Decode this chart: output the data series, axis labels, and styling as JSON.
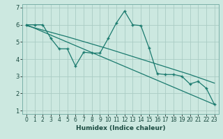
{
  "title": "",
  "xlabel": "Humidex (Indice chaleur)",
  "ylabel": "",
  "bg_color": "#cce8e0",
  "grid_color": "#aaccc4",
  "line_color": "#1a7a6e",
  "xlim": [
    -0.5,
    23.5
  ],
  "ylim": [
    0.8,
    7.2
  ],
  "yticks": [
    1,
    2,
    3,
    4,
    5,
    6,
    7
  ],
  "xticks": [
    0,
    1,
    2,
    3,
    4,
    5,
    6,
    7,
    8,
    9,
    10,
    11,
    12,
    13,
    14,
    15,
    16,
    17,
    18,
    19,
    20,
    21,
    22,
    23
  ],
  "series1_x": [
    0,
    1,
    2,
    3,
    4,
    5,
    6,
    7,
    8,
    9,
    10,
    11,
    12,
    13,
    14,
    15,
    16,
    17,
    18,
    19,
    20,
    21,
    22,
    23
  ],
  "series1_y": [
    6.0,
    6.0,
    6.0,
    5.2,
    4.6,
    4.6,
    3.6,
    4.4,
    4.35,
    4.35,
    5.2,
    6.1,
    6.8,
    6.0,
    5.95,
    4.65,
    3.15,
    3.1,
    3.1,
    3.0,
    2.55,
    2.7,
    2.3,
    1.35
  ],
  "series2_x": [
    0,
    23
  ],
  "series2_y": [
    6.0,
    1.35
  ],
  "series3_x": [
    0,
    5,
    10,
    15,
    20,
    23
  ],
  "series3_y": [
    5.95,
    5.3,
    4.6,
    3.85,
    3.1,
    2.6
  ],
  "xlabel_fontsize": 6.5,
  "tick_fontsize": 5.5
}
